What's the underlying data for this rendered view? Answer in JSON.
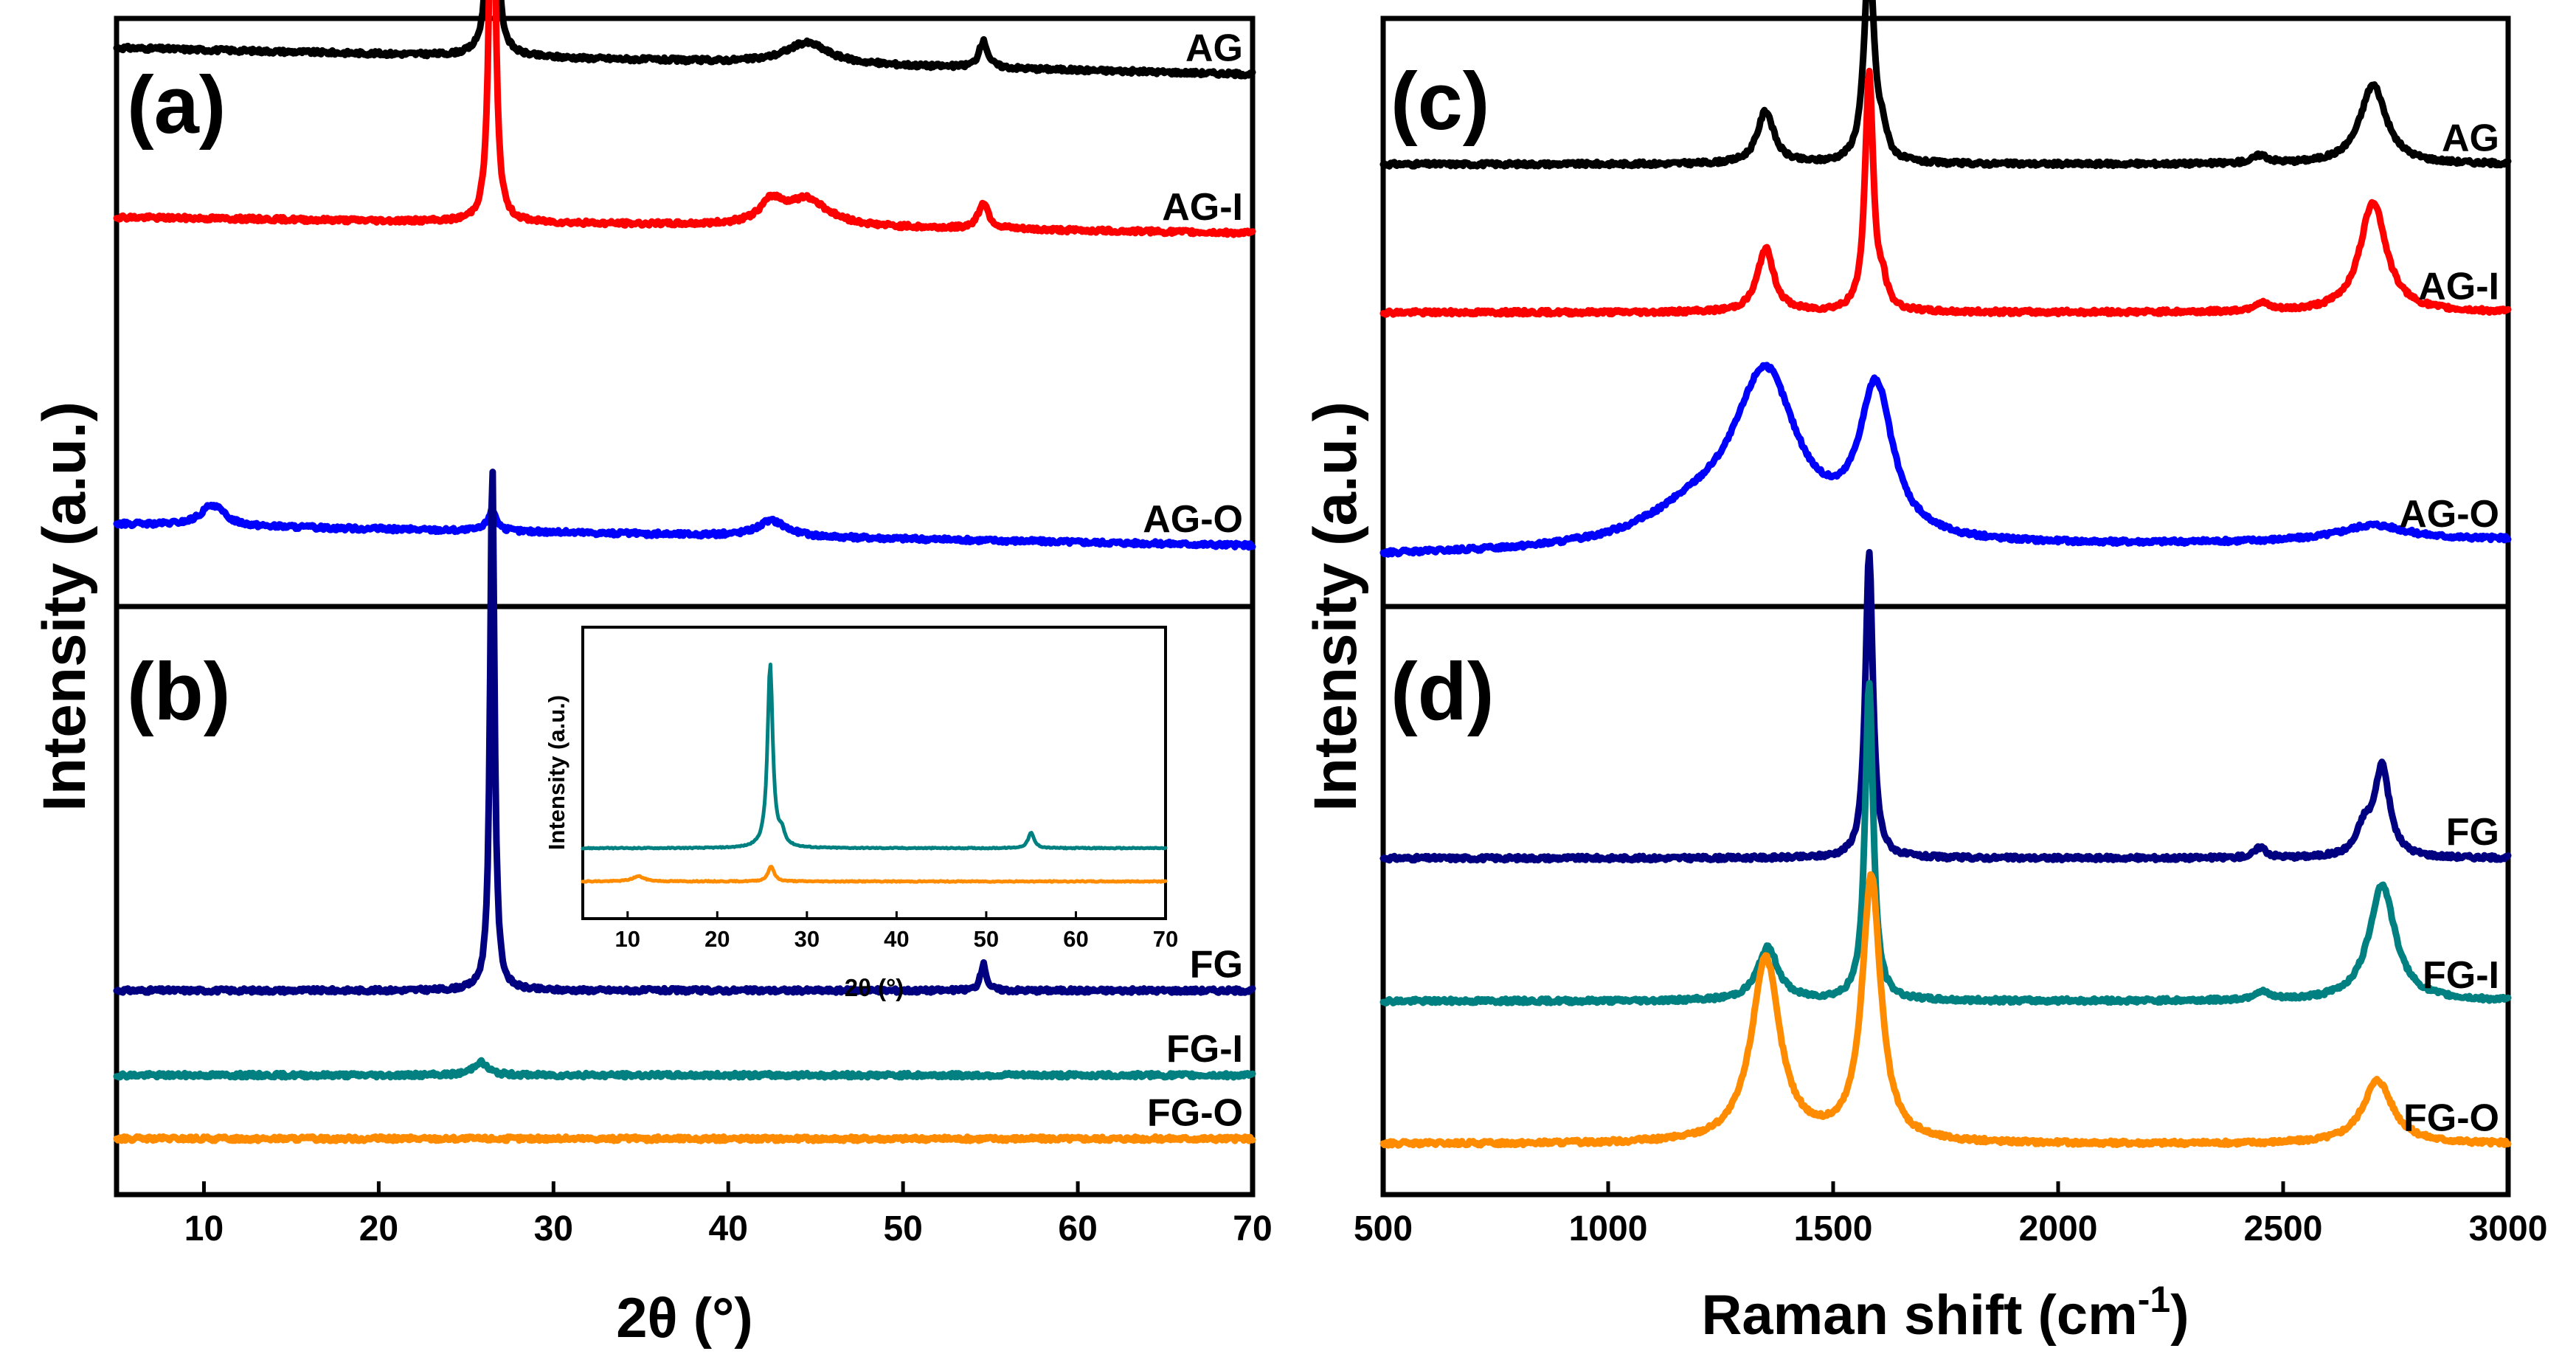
{
  "figure": {
    "panel_labels": [
      "(a)",
      "(b)",
      "(c)",
      "(d)"
    ],
    "left_ylabel": "Intensity (a.u.)",
    "right_ylabel": "Intensity (a.u.)",
    "left_xlabel": "2θ (°)",
    "right_xlabel_main": "Raman shift (cm",
    "right_xlabel_sup": "-1",
    "right_xlabel_end": ")",
    "inset_ylabel": "Intensity (a.u.)",
    "inset_xlabel": "2θ (°)"
  },
  "chart_data": [
    {
      "panel": "(a)",
      "type": "line",
      "xlabel": "2θ (°)",
      "ylabel": "Intensity (a.u.)",
      "xlim": [
        5,
        70
      ],
      "xticks": [
        10,
        20,
        30,
        40,
        50,
        60,
        70
      ],
      "series": [
        {
          "name": "AG",
          "color": "#000000",
          "baseline": 1.0,
          "slope": -0.05,
          "bumps": [
            [
              26.5,
              0.9,
              0.18
            ],
            [
              44.5,
              0.04,
              1.5
            ],
            [
              54.6,
              0.05,
              0.3
            ]
          ]
        },
        {
          "name": "AG-I",
          "color": "#ff0000",
          "baseline": 0.68,
          "slope": -0.03,
          "bumps": [
            [
              26.5,
              0.92,
              0.18
            ],
            [
              42.5,
              0.04,
              0.8
            ],
            [
              44.5,
              0.05,
              1.5
            ],
            [
              54.6,
              0.05,
              0.35
            ]
          ]
        },
        {
          "name": "AG-O",
          "color": "#0000ff",
          "baseline": 0.1,
          "slope": -0.04,
          "bumps": [
            [
              10.5,
              0.04,
              0.8
            ],
            [
              26.5,
              0.04,
              0.3
            ],
            [
              42.5,
              0.03,
              1.0
            ]
          ]
        }
      ]
    },
    {
      "panel": "(b)",
      "type": "line",
      "xlabel": "2θ (°)",
      "ylabel": "Intensity (a.u.)",
      "xlim": [
        5,
        70
      ],
      "xticks": [
        10,
        20,
        30,
        40,
        50,
        60,
        70
      ],
      "series": [
        {
          "name": "FG",
          "color": "#000080",
          "baseline": 0.33,
          "slope": 0,
          "bumps": [
            [
              26.5,
              1.0,
              0.15
            ],
            [
              54.6,
              0.05,
              0.2
            ]
          ]
        },
        {
          "name": "FG-I",
          "color": "#008080",
          "baseline": 0.17,
          "slope": 0,
          "bumps": [
            [
              25.8,
              0.025,
              0.5
            ]
          ]
        },
        {
          "name": "FG-O",
          "color": "#ff8c00",
          "baseline": 0.05,
          "slope": 0,
          "bumps": []
        }
      ],
      "inset": {
        "type": "line",
        "xlabel": "2θ (°)",
        "ylabel": "Intensity (a.u.)",
        "xlim": [
          5,
          70
        ],
        "xticks": [
          10,
          20,
          30,
          40,
          50,
          60,
          70
        ],
        "series": [
          {
            "name": "FG-I",
            "color": "#008080",
            "baseline": 0.22,
            "slope": 0,
            "bumps": [
              [
                25.9,
                0.72,
                0.35
              ],
              [
                27.2,
                0.05,
                0.4
              ],
              [
                55.0,
                0.06,
                0.4
              ]
            ]
          },
          {
            "name": "FG-O",
            "color": "#ff8c00",
            "baseline": 0.09,
            "slope": 0,
            "bumps": [
              [
                11.2,
                0.02,
                0.8
              ],
              [
                26.0,
                0.06,
                0.4
              ]
            ]
          }
        ]
      }
    },
    {
      "panel": "(c)",
      "type": "line",
      "xlabel": "Raman shift (cm-1)",
      "ylabel": "Intensity (a.u.)",
      "xlim": [
        500,
        3000
      ],
      "xticks": [
        500,
        1000,
        1500,
        2000,
        2500,
        3000
      ],
      "series": [
        {
          "name": "AG",
          "color": "#000000",
          "baseline": 0.78,
          "slope": 0,
          "bumps": [
            [
              1350,
              0.1,
              22
            ],
            [
              1580,
              0.4,
              13
            ],
            [
              1610,
              0.04,
              12
            ],
            [
              2450,
              0.015,
              20
            ],
            [
              2700,
              0.15,
              35
            ]
          ]
        },
        {
          "name": "AG-I",
          "color": "#ff0000",
          "baseline": 0.5,
          "slope": 0,
          "bumps": [
            [
              1350,
              0.12,
              22
            ],
            [
              1580,
              0.45,
              11
            ],
            [
              1610,
              0.04,
              12
            ],
            [
              2450,
              0.015,
              20
            ],
            [
              2700,
              0.21,
              35
            ]
          ]
        },
        {
          "name": "AG-O",
          "color": "#0000ff",
          "baseline": 0.04,
          "slope": 0.03,
          "bumps": [
            [
              1350,
              0.31,
              85
            ],
            [
              1595,
              0.28,
              45
            ],
            [
              1200,
              0.06,
              150
            ],
            [
              2700,
              0.03,
              90
            ]
          ]
        }
      ]
    },
    {
      "panel": "(d)",
      "type": "line",
      "xlabel": "Raman shift (cm-1)",
      "ylabel": "Intensity (a.u.)",
      "xlim": [
        500,
        3000
      ],
      "xticks": [
        500,
        1000,
        1500,
        2000,
        2500,
        3000
      ],
      "series": [
        {
          "name": "FG",
          "color": "#000080",
          "baseline": 0.58,
          "slope": 0,
          "bumps": [
            [
              1580,
              0.58,
              10
            ],
            [
              2450,
              0.02,
              15
            ],
            [
              2680,
              0.05,
              20
            ],
            [
              2720,
              0.17,
              20
            ]
          ]
        },
        {
          "name": "FG-I",
          "color": "#008080",
          "baseline": 0.31,
          "slope": 0,
          "bumps": [
            [
              1355,
              0.1,
              28
            ],
            [
              1580,
              0.6,
              11
            ],
            [
              2450,
              0.015,
              20
            ],
            [
              2720,
              0.22,
              35
            ]
          ]
        },
        {
          "name": "FG-O",
          "color": "#ff8c00",
          "baseline": 0.04,
          "slope": 0,
          "bumps": [
            [
              1350,
              0.35,
              38
            ],
            [
              1585,
              0.5,
              25
            ],
            [
              2710,
              0.12,
              40
            ]
          ]
        }
      ]
    }
  ]
}
